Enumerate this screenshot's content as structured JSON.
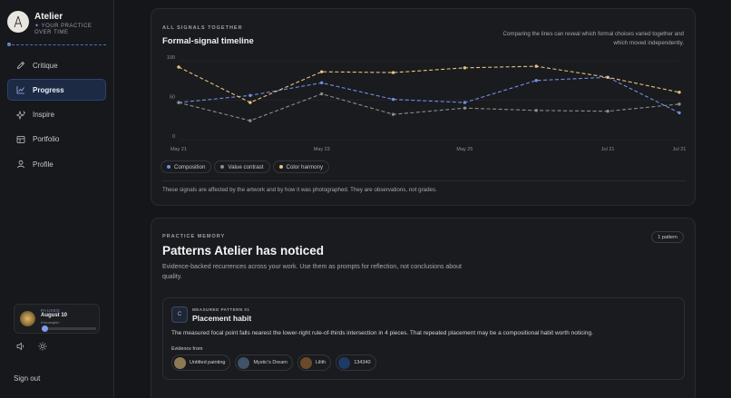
{
  "app": {
    "name": "Atelier",
    "tagline_line1": "YOUR PRACTICE",
    "tagline_line2": "OVER TIME"
  },
  "nav": [
    {
      "label": "Critique",
      "icon": "pencil-icon",
      "active": false
    },
    {
      "label": "Progress",
      "icon": "trend-chart-icon",
      "active": true
    },
    {
      "label": "Inspire",
      "icon": "sparkles-icon",
      "active": false
    },
    {
      "label": "Portfolio",
      "icon": "portfolio-icon",
      "active": false
    },
    {
      "label": "Profile",
      "icon": "user-icon",
      "active": false
    }
  ],
  "player": {
    "status": "PAUSED",
    "title": "August 10",
    "artist": "Khruangbin",
    "progress": 0.05
  },
  "signout_label": "Sign out",
  "timeline": {
    "eyebrow": "ALL SIGNALS TOGETHER",
    "title": "Formal-signal timeline",
    "description": "Comparing the lines can reveal which formal choices varied together and which moved independently.",
    "note": "These signals are affected by the artwork and by how it was photographed. They are observations, not grades."
  },
  "chart_data": {
    "type": "line",
    "x": [
      "May 21",
      "May 22",
      "May 23",
      "May 24",
      "May 25",
      "May 26",
      "Jul 21",
      "Jul 21"
    ],
    "tick_labels": [
      "May 21",
      "May 23",
      "May 25",
      "Jul 21",
      "Jul 21"
    ],
    "tick_indices": [
      0,
      2,
      4,
      6,
      7
    ],
    "ylim": [
      0,
      100
    ],
    "yticks": [
      0,
      50,
      100
    ],
    "grid": true,
    "legend_position": "bottom-left",
    "series": [
      {
        "name": "Composition",
        "color": "#6f8fe0",
        "dashed": true,
        "values": [
          47,
          56,
          72,
          51,
          47,
          75,
          79,
          34
        ]
      },
      {
        "name": "Value contrast",
        "color": "#8a8f86",
        "dashed": true,
        "values": [
          47,
          24,
          58,
          32,
          40,
          37,
          36,
          45
        ]
      },
      {
        "name": "Color harmony",
        "color": "#e7c27d",
        "dashed": true,
        "values": [
          92,
          47,
          86,
          85,
          91,
          93,
          79,
          60
        ]
      }
    ]
  },
  "memory": {
    "eyebrow": "PRACTICE MEMORY",
    "title": "Patterns Atelier has noticed",
    "description": "Evidence-backed recurrences across your work. Use them as prompts for reflection, not conclusions about quality.",
    "badge": "1 pattern",
    "pattern": {
      "icon_letter": "C",
      "eyebrow": "MEASURED PATTERN 01",
      "title": "Placement habit",
      "body": "The measured focal point falls nearest the lower-right rule-of-thirds intersection in 4 pieces. That repeated placement may be a compositional habit worth noticing.",
      "evidence_label": "Evidence from",
      "evidence": [
        {
          "label": "Untitled painting",
          "thumb": "#8c7a55"
        },
        {
          "label": "Mystic's Dream",
          "thumb": "#3f5266"
        },
        {
          "label": "Lilith",
          "thumb": "#6a4a2a"
        },
        {
          "label": "134340",
          "thumb": "#1f3a66"
        }
      ]
    }
  }
}
